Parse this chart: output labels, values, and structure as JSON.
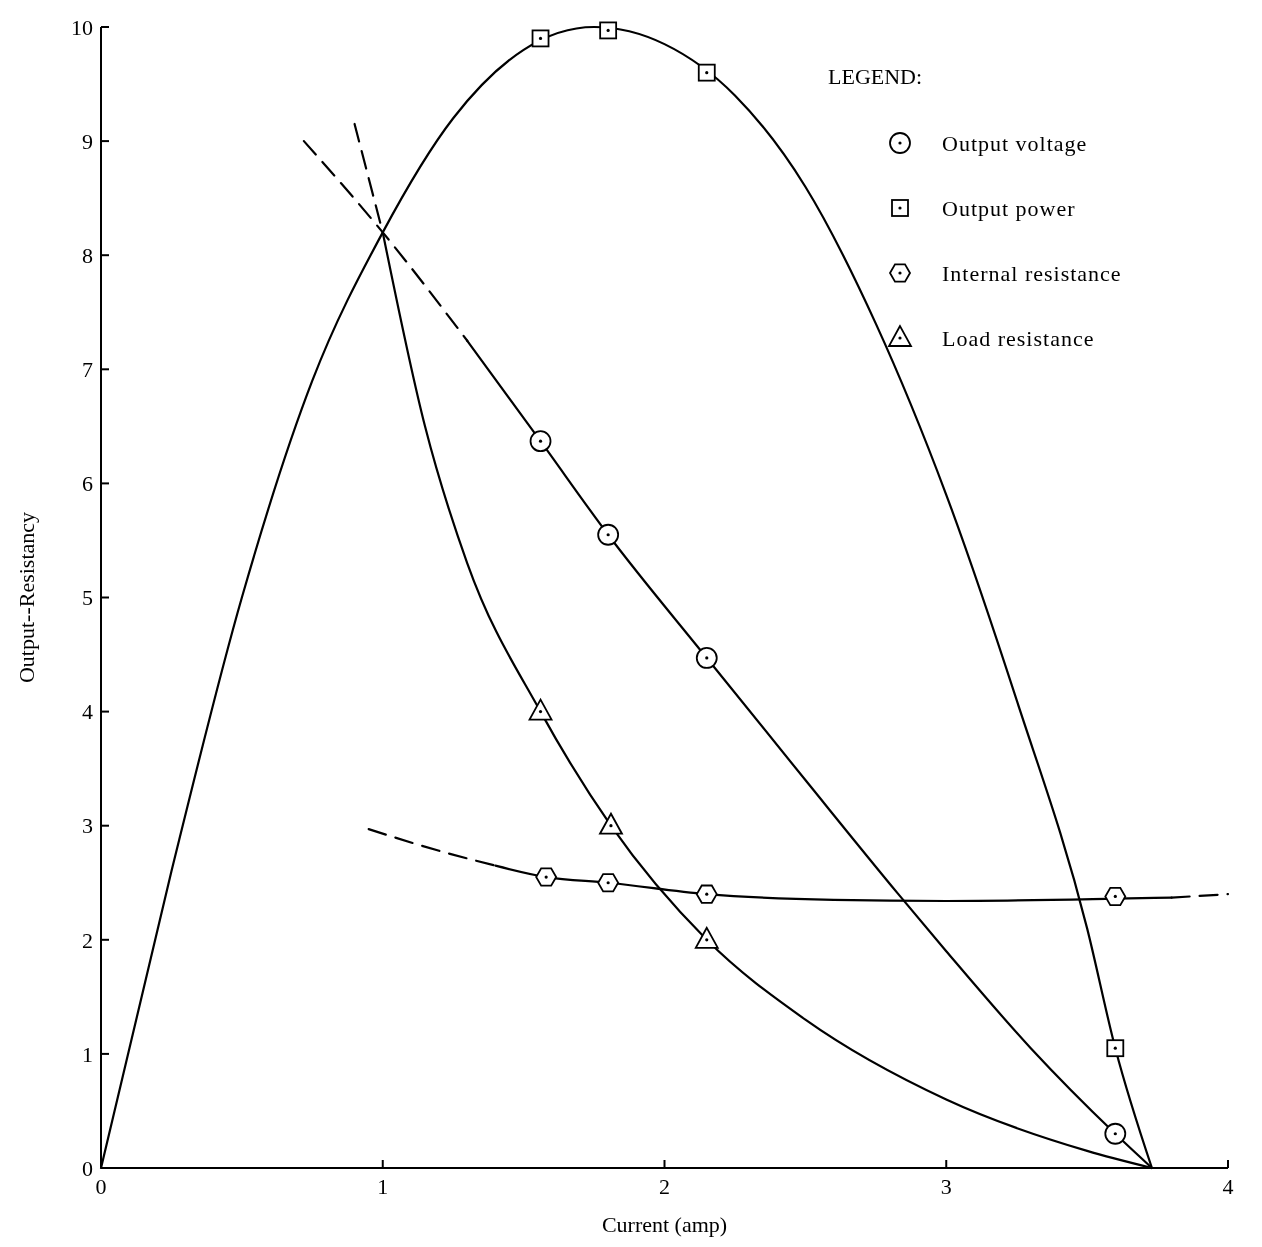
{
  "chart_data": {
    "type": "line",
    "xlabel": "Current (amp)",
    "ylabel": "Output--Resistancy",
    "legend_title": "LEGEND:",
    "legend": "top right",
    "grid": false,
    "xlim": [
      0,
      4
    ],
    "xticks": [
      0,
      1,
      2,
      3,
      4
    ],
    "ylim": [
      0,
      10
    ],
    "yticks": [
      0,
      1,
      2,
      3,
      4,
      5,
      6,
      7,
      8,
      9,
      10
    ],
    "series": [
      {
        "color": "#000000",
        "marker": "none",
        "line_style": "solid",
        "x": [
          0,
          0.25,
          0.5,
          0.75,
          1,
          1.25,
          1.5,
          1.75,
          2,
          2.25,
          2.5,
          2.75,
          3,
          3.25,
          3.5,
          3.6,
          3.73
        ],
        "values": [
          0,
          2.6,
          5.0,
          6.9,
          8.2,
          9.2,
          9.8,
          10.0,
          9.85,
          9.4,
          8.6,
          7.4,
          5.9,
          4.1,
          2.1,
          1.05,
          0
        ]
      },
      {
        "color": "#000000",
        "marker": "none",
        "line_style": "dashed",
        "x": [
          0.72,
          1.0,
          1.3
        ],
        "values": [
          9.0,
          8.2,
          7.25
        ]
      },
      {
        "color": "#000000",
        "marker": "none",
        "line_style": "solid",
        "x": [
          1.3,
          1.56,
          1.8,
          2.15,
          2.5,
          2.83,
          3.0,
          3.3,
          3.6,
          3.73
        ],
        "values": [
          7.25,
          6.37,
          5.55,
          4.47,
          3.4,
          2.4,
          1.9,
          1.05,
          0.3,
          0
        ]
      },
      {
        "color": "#000000",
        "marker": "none",
        "line_style": "dashed",
        "x": [
          0.9,
          1.0
        ],
        "values": [
          9.15,
          8.2
        ]
      },
      {
        "color": "#000000",
        "marker": "none",
        "line_style": "solid",
        "x": [
          1.0,
          1.15,
          1.3,
          1.56,
          1.81,
          2.15,
          2.5,
          3.0,
          3.5,
          3.73
        ],
        "values": [
          8.2,
          6.5,
          5.3,
          4.0,
          3.0,
          2.0,
          1.3,
          0.6,
          0.15,
          0
        ]
      },
      {
        "color": "#000000",
        "marker": "none",
        "line_style": "dashed",
        "x": [
          0.95,
          1.2,
          1.4
        ],
        "values": [
          2.97,
          2.78,
          2.65
        ]
      },
      {
        "color": "#000000",
        "marker": "none",
        "line_style": "solid",
        "x": [
          1.4,
          1.58,
          1.8,
          2.15,
          2.6,
          3.0,
          3.6,
          3.8
        ],
        "values": [
          2.65,
          2.55,
          2.5,
          2.4,
          2.35,
          2.34,
          2.36,
          2.37
        ]
      },
      {
        "color": "#000000",
        "marker": "none",
        "line_style": "dashed",
        "x": [
          3.8,
          4.0
        ],
        "values": [
          2.37,
          2.4
        ]
      },
      {
        "type": "scatter",
        "name": "Output voltage",
        "color": "#000000",
        "marker": "circle",
        "x": [
          1.56,
          1.8,
          2.15,
          3.6
        ],
        "values": [
          6.37,
          5.55,
          4.47,
          0.3
        ]
      },
      {
        "type": "scatter",
        "name": "Output power",
        "color": "#000000",
        "marker": "square",
        "x": [
          1.56,
          1.8,
          2.15,
          3.6
        ],
        "values": [
          9.9,
          9.97,
          9.6,
          1.05
        ]
      },
      {
        "type": "scatter",
        "name": "Internal resistance",
        "color": "#000000",
        "x": [
          1.58,
          1.8,
          2.15,
          3.6
        ],
        "values": [
          2.55,
          2.5,
          2.4,
          2.38
        ]
      },
      {
        "type": "scatter",
        "name": "Load resistance",
        "color": "#000000",
        "marker": "triangle",
        "x": [
          1.56,
          1.81,
          2.15
        ],
        "values": [
          4.0,
          3.0,
          2.0
        ]
      }
    ]
  }
}
